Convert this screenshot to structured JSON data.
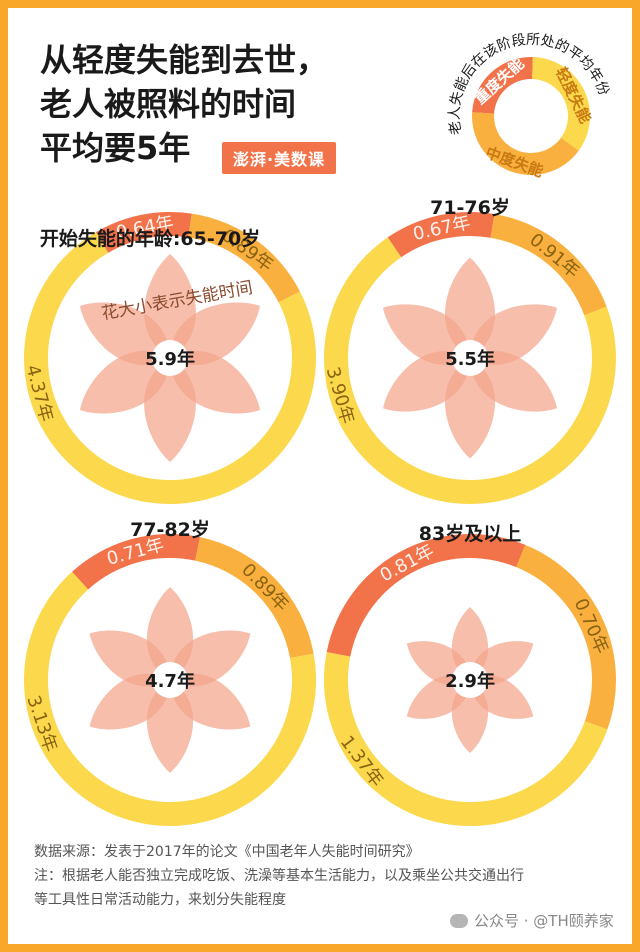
{
  "title_lines": [
    "从轻度失能到去世，",
    "老人被照料的时间",
    "平均要5年"
  ],
  "brand": "澎湃·美数课",
  "colors": {
    "background": "#F9A72B",
    "severe": "#F2724A",
    "moderate": "#FAB03F",
    "mild": "#FCD84D",
    "flower": "#F4A58C",
    "flower_overlap": "#EF806E",
    "text_dark": "#1A1A1A",
    "label_text": "#8A6312"
  },
  "legend": {
    "caption": "老人失能后在该阶段所处的平均年份",
    "segments": [
      {
        "label": "重度失能",
        "color": "#F2724A"
      },
      {
        "label": "轻度失能",
        "color": "#FCD84D"
      },
      {
        "label": "中度失能",
        "color": "#FAB03F"
      }
    ]
  },
  "flower_note": "花大小表示失能时间",
  "chart_data": {
    "type": "pie",
    "note": "donut charts with flower size showing total time",
    "categories": [
      "重度失能",
      "中度失能",
      "轻度失能"
    ],
    "charts": [
      {
        "title": "开始失能的年龄:65-70岁",
        "total_label": "5.9年",
        "total": 5.9,
        "values": [
          0.64,
          0.89,
          4.37
        ],
        "labels": [
          "0.64年",
          "0.89年",
          "4.37年"
        ]
      },
      {
        "title": "71-76岁",
        "total_label": "5.5年",
        "total": 5.5,
        "values": [
          0.67,
          0.91,
          3.9
        ],
        "labels": [
          "0.67年",
          "0.91年",
          "3.90年"
        ]
      },
      {
        "title": "77-82岁",
        "total_label": "4.7年",
        "total": 4.7,
        "values": [
          0.71,
          0.89,
          3.13
        ],
        "labels": [
          "0.71年",
          "0.89年",
          "3.13年"
        ]
      },
      {
        "title": "83岁及以上",
        "total_label": "2.9年",
        "total": 2.9,
        "values": [
          0.81,
          0.7,
          1.37
        ],
        "labels": [
          "0.81年",
          "0.70年",
          "1.37年"
        ]
      }
    ]
  },
  "footer": {
    "source": "数据来源：发表于2017年的论文《中国老年人失能时间研究》",
    "note_line1": "注：根据老人能否独立完成吃饭、洗澡等基本生活能力，以及乘坐公共交通出行",
    "note_line2": "等工具性日常活动能力，来划分失能程度"
  },
  "watermark": "公众号 · @TH颐养家"
}
